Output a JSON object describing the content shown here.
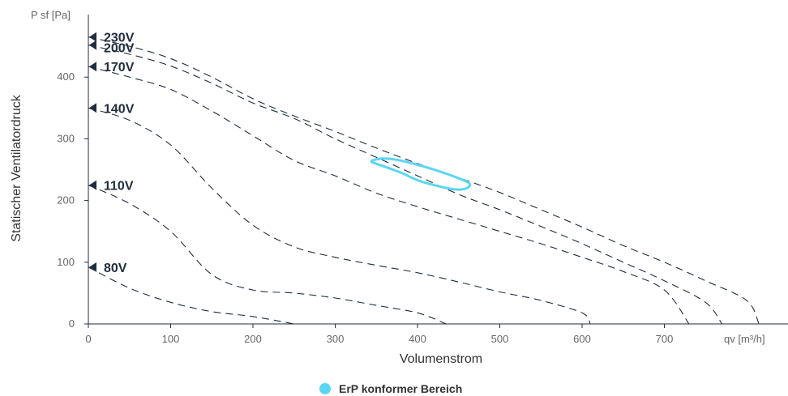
{
  "chart_data": {
    "type": "line",
    "xlabel": "Volumenstrom",
    "ylabel": "Statischer Ventilatordruck",
    "x_unit": "qv [m³/h]",
    "y_unit": "P sf [Pa]",
    "xlim": [
      0,
      850
    ],
    "ylim": [
      0,
      500
    ],
    "x_ticks": [
      0,
      100,
      200,
      300,
      400,
      500,
      600,
      700
    ],
    "y_ticks": [
      0,
      100,
      200,
      300,
      400
    ],
    "grid": false,
    "legend_position": "bottom",
    "colors": {
      "curve": "#1f2d3d",
      "erp": "#5ad6f2",
      "axis": "#1f2d3d"
    },
    "series": [
      {
        "name": "230V",
        "points": [
          [
            0,
            465
          ],
          [
            50,
            450
          ],
          [
            100,
            430
          ],
          [
            150,
            400
          ],
          [
            200,
            365
          ],
          [
            250,
            337
          ],
          [
            300,
            312
          ],
          [
            350,
            285
          ],
          [
            400,
            260
          ],
          [
            450,
            237
          ],
          [
            500,
            213
          ],
          [
            550,
            185
          ],
          [
            600,
            157
          ],
          [
            650,
            127
          ],
          [
            700,
            100
          ],
          [
            750,
            70
          ],
          [
            800,
            38
          ],
          [
            815,
            0
          ]
        ]
      },
      {
        "name": "200V",
        "points": [
          [
            0,
            452
          ],
          [
            50,
            437
          ],
          [
            100,
            418
          ],
          [
            150,
            390
          ],
          [
            200,
            358
          ],
          [
            250,
            333
          ],
          [
            300,
            300
          ],
          [
            350,
            270
          ],
          [
            400,
            240
          ],
          [
            450,
            210
          ],
          [
            500,
            185
          ],
          [
            550,
            158
          ],
          [
            600,
            130
          ],
          [
            650,
            100
          ],
          [
            700,
            70
          ],
          [
            750,
            35
          ],
          [
            770,
            0
          ]
        ]
      },
      {
        "name": "170V",
        "points": [
          [
            0,
            417
          ],
          [
            50,
            400
          ],
          [
            100,
            380
          ],
          [
            150,
            345
          ],
          [
            200,
            305
          ],
          [
            250,
            265
          ],
          [
            300,
            240
          ],
          [
            350,
            212
          ],
          [
            400,
            190
          ],
          [
            450,
            170
          ],
          [
            500,
            150
          ],
          [
            550,
            130
          ],
          [
            600,
            108
          ],
          [
            650,
            85
          ],
          [
            700,
            55
          ],
          [
            730,
            0
          ]
        ]
      },
      {
        "name": "140V",
        "points": [
          [
            0,
            350
          ],
          [
            50,
            330
          ],
          [
            100,
            290
          ],
          [
            150,
            220
          ],
          [
            200,
            160
          ],
          [
            250,
            125
          ],
          [
            300,
            108
          ],
          [
            350,
            95
          ],
          [
            400,
            83
          ],
          [
            450,
            68
          ],
          [
            500,
            52
          ],
          [
            550,
            38
          ],
          [
            600,
            18
          ],
          [
            610,
            0
          ]
        ]
      },
      {
        "name": "110V",
        "points": [
          [
            0,
            225
          ],
          [
            50,
            195
          ],
          [
            100,
            150
          ],
          [
            150,
            80
          ],
          [
            200,
            55
          ],
          [
            250,
            50
          ],
          [
            300,
            42
          ],
          [
            350,
            30
          ],
          [
            400,
            18
          ],
          [
            435,
            0
          ]
        ]
      },
      {
        "name": "80V",
        "points": [
          [
            0,
            92
          ],
          [
            50,
            58
          ],
          [
            100,
            35
          ],
          [
            150,
            20
          ],
          [
            200,
            12
          ],
          [
            250,
            0
          ]
        ]
      }
    ],
    "erp_region": {
      "name": "ErP konformer Bereich",
      "points": [
        [
          345,
          265
        ],
        [
          357,
          268
        ],
        [
          375,
          266
        ],
        [
          400,
          258
        ],
        [
          425,
          248
        ],
        [
          450,
          236
        ],
        [
          463,
          228
        ],
        [
          460,
          220
        ],
        [
          445,
          218
        ],
        [
          420,
          225
        ],
        [
          400,
          233
        ],
        [
          380,
          245
        ],
        [
          360,
          255
        ],
        [
          345,
          262
        ]
      ]
    }
  }
}
